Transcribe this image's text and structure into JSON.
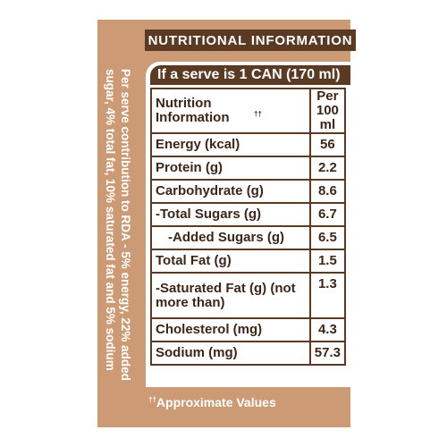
{
  "header": {
    "title": "NUTRITIONAL INFORMATION"
  },
  "serve": {
    "label": "If a serve is 1 CAN (170 ml)"
  },
  "table": {
    "col_header_name": "Nutrition Information",
    "col_header_name_mark": "††",
    "col_header_value": "Per 100 ml",
    "rows": [
      {
        "name": "Energy (kcal)",
        "value": "56"
      },
      {
        "name": "Protein (g)",
        "value": "2.2"
      },
      {
        "name": "Carbohydrate (g)",
        "value": "8.6"
      },
      {
        "name": "-Total Sugars (g)",
        "value": "6.7"
      },
      {
        "name": "-Added Sugars (g)",
        "value": "6.5"
      },
      {
        "name": "Total Fat (g)",
        "value": "1.5"
      },
      {
        "name": "-Saturated Fat (g) (not more than)",
        "value": "1.3"
      },
      {
        "name": "Cholesterol (mg)",
        "value": "4.3"
      },
      {
        "name": "Sodium (mg)",
        "value": "57.3"
      }
    ]
  },
  "footnote": {
    "mark": "††",
    "text": "Approximate Values"
  },
  "side_note": {
    "text": "Per serve contribution to RDA - 5% energy, 22% added sugar, 4% total fat, 10% saturated fat and 5% sodium"
  },
  "colors": {
    "panel": "#cc9a74",
    "brown": "#5b3a24"
  }
}
